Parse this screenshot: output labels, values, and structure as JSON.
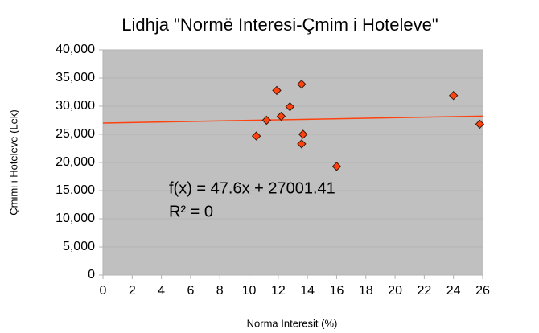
{
  "chart_data": {
    "type": "scatter",
    "title": "Lidhja \"Normë Interesi-Çmim i Hoteleve\"",
    "x_label": "Norma Interesit (%)",
    "y_label": "Çmimi i Hoteleve (Lek)",
    "series": [
      {
        "name": "Çmimi i Hoteleve (Lek)",
        "color": "#ff420e",
        "x": [
          10.5,
          11.2,
          11.9,
          12.2,
          12.8,
          13.6,
          13.6,
          13.7,
          16,
          24,
          25.8
        ],
        "values": [
          24700,
          27500,
          32800,
          28200,
          29900,
          33900,
          23300,
          25000,
          19300,
          31900,
          26800
        ]
      }
    ],
    "trendline": {
      "slope": 47.6,
      "intercept": 27001.41,
      "color": "#ff420e",
      "label": "f(x) = 47.6x + 27001.41",
      "r2_label": "R² = 0"
    },
    "xlim": [
      0,
      26
    ],
    "xticks": [
      0,
      2,
      4,
      6,
      8,
      10,
      12,
      14,
      16,
      18,
      20,
      22,
      24,
      26
    ],
    "ylim": [
      0,
      40000
    ],
    "yticks": [
      0,
      {
        "value": 5000,
        "label": "5,000"
      },
      {
        "value": 10000,
        "label": "10,000"
      },
      {
        "value": 15000,
        "label": "15,000"
      },
      {
        "value": 20000,
        "label": "20,000"
      },
      {
        "value": 25000,
        "label": "25,000"
      },
      {
        "value": 30000,
        "label": "30,000"
      },
      {
        "value": 35000,
        "label": "35,000"
      },
      {
        "value": 40000,
        "label": "40,000"
      }
    ],
    "grid": true
  }
}
